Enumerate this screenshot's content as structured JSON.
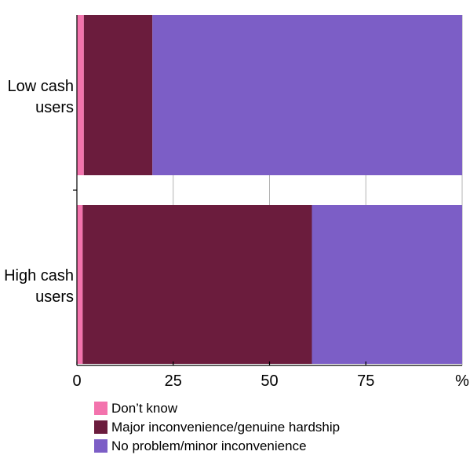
{
  "chart_data": {
    "type": "bar",
    "orientation": "horizontal",
    "stacked": true,
    "categories": [
      "Low cash users",
      "High cash users"
    ],
    "category_lines": [
      [
        "Low cash",
        "users"
      ],
      [
        "High cash",
        "users"
      ]
    ],
    "series": [
      {
        "name": "Don’t know",
        "color": "#f373ad",
        "values": [
          1.8,
          1.5
        ]
      },
      {
        "name": "Major inconvenience/genuine hardship",
        "color": "#6b1c3d",
        "values": [
          17.8,
          59.5
        ]
      },
      {
        "name": "No problem/minor inconvenience",
        "color": "#7c5ec6",
        "values": [
          80.4,
          39.0
        ]
      }
    ],
    "xlim": [
      0,
      100
    ],
    "xticks": [
      0,
      25,
      50,
      75
    ],
    "xtick_labels": [
      "0",
      "25",
      "50",
      "75"
    ],
    "x_unit_label": "%",
    "grid": "vertical",
    "legend_position": "bottom-left"
  }
}
